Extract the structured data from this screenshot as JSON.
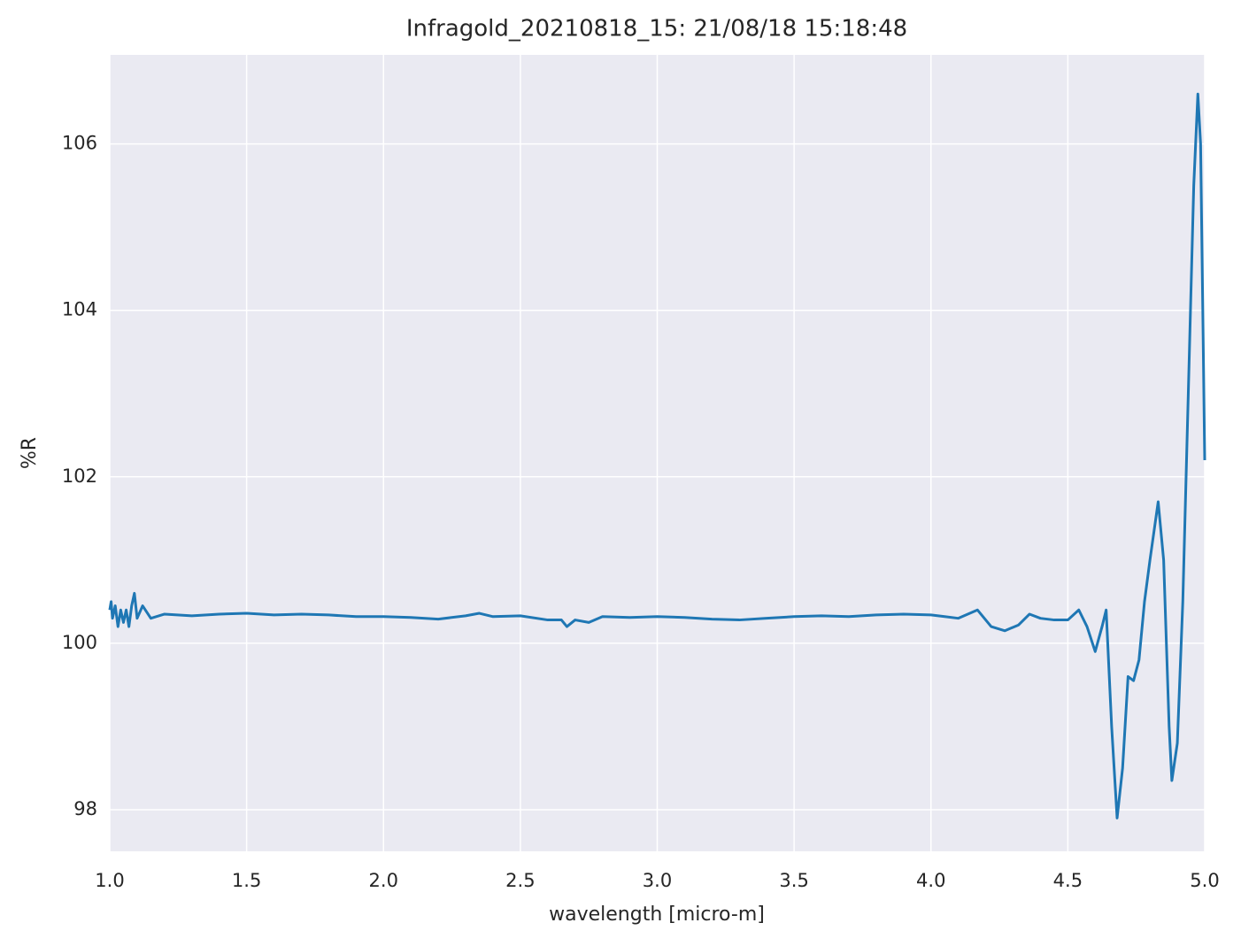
{
  "chart_data": {
    "type": "line",
    "title": "Infragold_20210818_15:  21/08/18 15:18:48",
    "x_label": "wavelength [micro-m]",
    "y_label": "%R",
    "color": "#1f77b4",
    "grid": true,
    "x": [
      1.0,
      1.005,
      1.01,
      1.02,
      1.03,
      1.04,
      1.05,
      1.06,
      1.07,
      1.08,
      1.09,
      1.1,
      1.12,
      1.15,
      1.2,
      1.3,
      1.4,
      1.5,
      1.6,
      1.7,
      1.8,
      1.9,
      2.0,
      2.1,
      2.2,
      2.3,
      2.35,
      2.4,
      2.5,
      2.6,
      2.65,
      2.67,
      2.7,
      2.75,
      2.8,
      2.9,
      3.0,
      3.1,
      3.2,
      3.3,
      3.4,
      3.5,
      3.6,
      3.7,
      3.8,
      3.9,
      4.0,
      4.05,
      4.1,
      4.17,
      4.22,
      4.27,
      4.32,
      4.36,
      4.4,
      4.45,
      4.5,
      4.54,
      4.57,
      4.6,
      4.625,
      4.64,
      4.66,
      4.68,
      4.7,
      4.72,
      4.74,
      4.76,
      4.78,
      4.8,
      4.83,
      4.85,
      4.87,
      4.88,
      4.9,
      4.92,
      4.94,
      4.96,
      4.975,
      4.985,
      4.995,
      5.0
    ],
    "values": [
      100.4,
      100.5,
      100.3,
      100.45,
      100.2,
      100.4,
      100.25,
      100.4,
      100.2,
      100.45,
      100.6,
      100.3,
      100.45,
      100.3,
      100.35,
      100.33,
      100.35,
      100.36,
      100.34,
      100.35,
      100.34,
      100.32,
      100.32,
      100.31,
      100.29,
      100.33,
      100.36,
      100.32,
      100.33,
      100.28,
      100.28,
      100.2,
      100.28,
      100.25,
      100.32,
      100.31,
      100.32,
      100.31,
      100.29,
      100.28,
      100.3,
      100.32,
      100.33,
      100.32,
      100.34,
      100.35,
      100.34,
      100.32,
      100.3,
      100.4,
      100.2,
      100.15,
      100.22,
      100.35,
      100.3,
      100.28,
      100.28,
      100.4,
      100.2,
      99.9,
      100.2,
      100.4,
      99.0,
      97.9,
      98.5,
      99.6,
      99.55,
      99.8,
      100.5,
      101.0,
      101.7,
      101.0,
      99.0,
      98.35,
      98.8,
      100.5,
      103.0,
      105.5,
      106.6,
      106.0,
      103.5,
      102.2
    ],
    "xlim": [
      1.0,
      5.0
    ],
    "xticks": [
      {
        "value": 1.0,
        "label": "1.0"
      },
      1.5,
      {
        "value": 2.0,
        "label": "2.0"
      },
      2.5,
      {
        "value": 3.0,
        "label": "3.0"
      },
      3.5,
      {
        "value": 4.0,
        "label": "4.0"
      },
      4.5,
      {
        "value": 5.0,
        "label": "5.0"
      }
    ],
    "ylim": [
      97.5,
      107.07
    ],
    "yticks": [
      98,
      100,
      102,
      104,
      106
    ]
  }
}
